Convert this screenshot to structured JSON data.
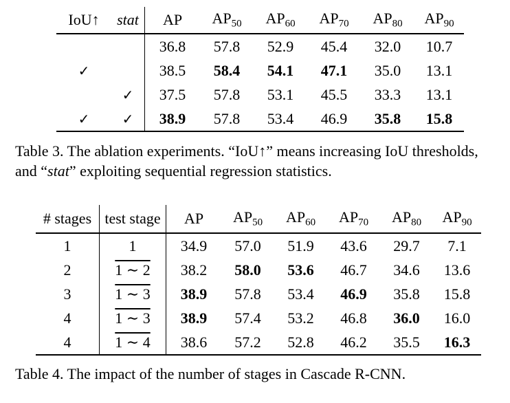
{
  "table3": {
    "headers": {
      "iou": "IoU↑",
      "stat": "stat",
      "ap": "AP",
      "ap50_base": "AP",
      "ap50_sub": "50",
      "ap60_base": "AP",
      "ap60_sub": "60",
      "ap70_base": "AP",
      "ap70_sub": "70",
      "ap80_base": "AP",
      "ap80_sub": "80",
      "ap90_base": "AP",
      "ap90_sub": "90"
    },
    "rows": [
      {
        "iou": "",
        "stat": "",
        "ap": "36.8",
        "ap50": "57.8",
        "ap60": "52.9",
        "ap70": "45.4",
        "ap80": "32.0",
        "ap90": "10.7"
      },
      {
        "iou": "✓",
        "stat": "",
        "ap": "38.5",
        "ap50": "58.4",
        "ap60": "54.1",
        "ap70": "47.1",
        "ap80": "35.0",
        "ap90": "13.1"
      },
      {
        "iou": "",
        "stat": "✓",
        "ap": "37.5",
        "ap50": "57.8",
        "ap60": "53.1",
        "ap70": "45.5",
        "ap80": "33.3",
        "ap90": "13.1"
      },
      {
        "iou": "✓",
        "stat": "✓",
        "ap": "38.9",
        "ap50": "57.8",
        "ap60": "53.4",
        "ap70": "46.9",
        "ap80": "35.8",
        "ap90": "15.8"
      }
    ],
    "caption": {
      "part1": "Table 3. The ablation experiments. “IoU↑” means increasing IoU thresholds, and “",
      "italic": "stat",
      "part2": "” exploiting sequential regression statistics."
    }
  },
  "table4": {
    "headers": {
      "stages": "# stages",
      "test_stage": "test stage",
      "ap": "AP",
      "ap50_base": "AP",
      "ap50_sub": "50",
      "ap60_base": "AP",
      "ap60_sub": "60",
      "ap70_base": "AP",
      "ap70_sub": "70",
      "ap80_base": "AP",
      "ap80_sub": "80",
      "ap90_base": "AP",
      "ap90_sub": "90"
    },
    "rows": [
      {
        "stages": "1",
        "test_stage": "1",
        "ap": "34.9",
        "ap50": "57.0",
        "ap60": "51.9",
        "ap70": "43.6",
        "ap80": "29.7",
        "ap90": "7.1"
      },
      {
        "stages": "2",
        "test_stage": "1 ∼ 2",
        "ap": "38.2",
        "ap50": "58.0",
        "ap60": "53.6",
        "ap70": "46.7",
        "ap80": "34.6",
        "ap90": "13.6"
      },
      {
        "stages": "3",
        "test_stage": "1 ∼ 3",
        "ap": "38.9",
        "ap50": "57.8",
        "ap60": "53.4",
        "ap70": "46.9",
        "ap80": "35.8",
        "ap90": "15.8"
      },
      {
        "stages": "4",
        "test_stage": "1 ∼ 3",
        "ap": "38.9",
        "ap50": "57.4",
        "ap60": "53.2",
        "ap70": "46.8",
        "ap80": "36.0",
        "ap90": "16.0"
      },
      {
        "stages": "4",
        "test_stage": "1 ∼ 4",
        "ap": "38.6",
        "ap50": "57.2",
        "ap60": "52.8",
        "ap70": "46.2",
        "ap80": "35.5",
        "ap90": "16.3"
      }
    ],
    "caption": "Table 4. The impact of the number of stages in Cascade R-CNN."
  }
}
